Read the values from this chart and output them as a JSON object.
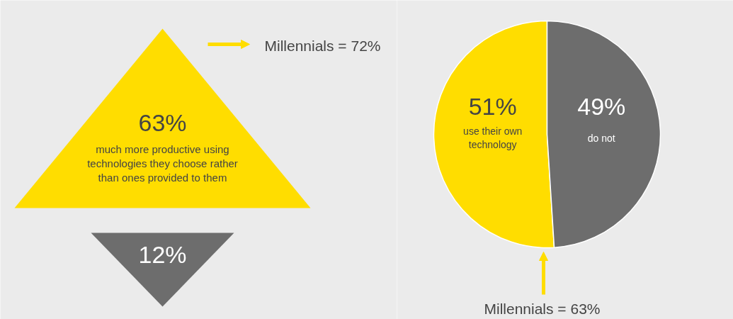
{
  "chart_data": [
    {
      "type": "other",
      "annotations": [
        "63%",
        "much more productive using technologies they choose rather than ones provided to them",
        "12%",
        "Millennials = 72%"
      ]
    },
    {
      "type": "pie",
      "categories": [
        "use their own technology",
        "do not"
      ],
      "values": [
        51,
        49
      ],
      "colors": [
        "#ffdd00",
        "#6d6d6d"
      ],
      "value_labels": [
        "51%",
        "49%"
      ],
      "legend": false,
      "annotations": [
        "Millennials = 63%"
      ]
    }
  ]
}
